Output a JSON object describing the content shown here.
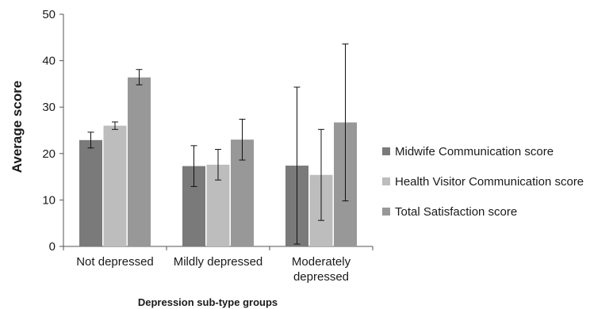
{
  "chart_data": {
    "type": "bar",
    "title": "",
    "xlabel": "Depression sub-type groups",
    "ylabel": "Average score",
    "ylim": [
      0,
      50
    ],
    "yticks": [
      0,
      10,
      20,
      30,
      40,
      50
    ],
    "grid": false,
    "legend_position": "right",
    "categories": [
      [
        "Not depressed"
      ],
      [
        "Mildly depressed"
      ],
      [
        "Moderately",
        "depressed"
      ]
    ],
    "series": [
      {
        "name": "Midwife Communication score",
        "color": "#7a7a7a",
        "values": [
          22.9,
          17.3,
          17.4
        ],
        "err_low": [
          21.2,
          12.9,
          0.5
        ],
        "err_high": [
          24.6,
          21.7,
          34.3
        ]
      },
      {
        "name": "Health Visitor Communication score",
        "color": "#bdbdbd",
        "values": [
          26.0,
          17.6,
          15.4
        ],
        "err_low": [
          25.2,
          14.3,
          5.6
        ],
        "err_high": [
          26.8,
          20.9,
          25.2
        ]
      },
      {
        "name": "Total Satisfaction score",
        "color": "#989898",
        "values": [
          36.4,
          23.0,
          26.7
        ],
        "err_low": [
          34.8,
          18.6,
          9.8
        ],
        "err_high": [
          38.1,
          27.4,
          43.6
        ]
      }
    ]
  }
}
